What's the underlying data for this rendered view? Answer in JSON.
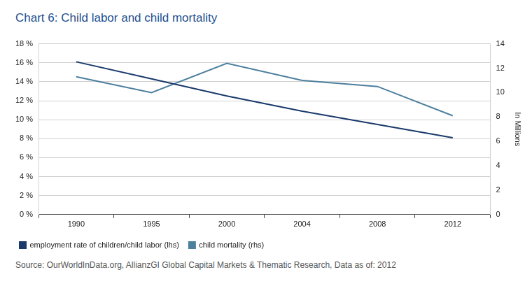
{
  "chart_data": {
    "type": "line",
    "title": "Chart 6: Child labor and child mortality",
    "source": "Source: OurWorldInData.org, AllianzGI Global Capital Markets & Thematic Research, Data as of: 2012",
    "categories": [
      "1990",
      "1995",
      "2000",
      "2004",
      "2008",
      "2012"
    ],
    "y2label": "In Millions",
    "ylim": [
      0,
      18
    ],
    "yticks": [
      {
        "value": 0,
        "label": "0 %"
      },
      {
        "value": 2,
        "label": "2 %"
      },
      {
        "value": 4,
        "label": "4 %"
      },
      {
        "value": 6,
        "label": "6 %"
      },
      {
        "value": 8,
        "label": "8 %"
      },
      {
        "value": 10,
        "label": "10 %"
      },
      {
        "value": 12,
        "label": "12 %"
      },
      {
        "value": 14,
        "label": "14 %"
      },
      {
        "value": 16,
        "label": "16 %"
      },
      {
        "value": 18,
        "label": "18 %"
      }
    ],
    "y2lim": [
      0,
      14
    ],
    "y2ticks": [
      0,
      2,
      4,
      6,
      8,
      10,
      12,
      14
    ],
    "grid": true,
    "legend": "bottom-left",
    "series": [
      {
        "name": "employment rate of children/child labor (lhs)",
        "color": "#1a3a6b",
        "marker": "none",
        "line_style": "solid",
        "values": [
          16.1,
          14.3,
          12.5,
          10.9,
          9.5,
          8.1
        ]
      },
      {
        "name": "child mortality (rhs)",
        "color": "#4d7f9e",
        "marker": "none",
        "line_style": "solid",
        "axis": "y2",
        "values": [
          11.3,
          10.0,
          12.4,
          11.0,
          10.5,
          8.1
        ]
      }
    ]
  }
}
